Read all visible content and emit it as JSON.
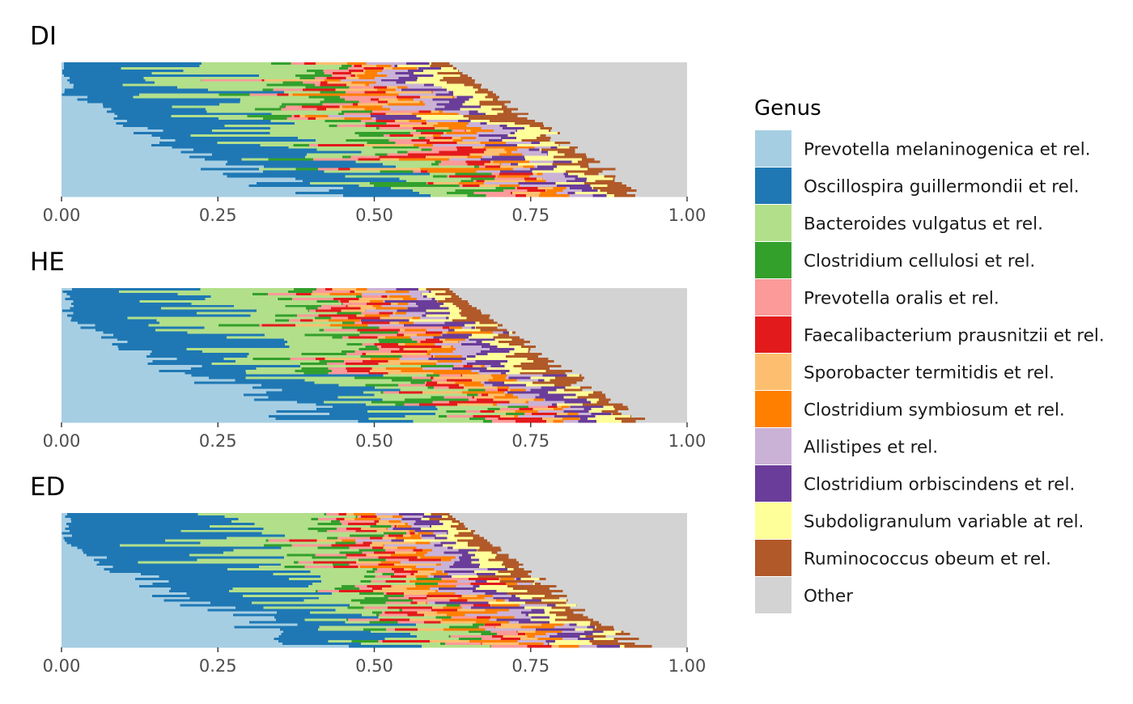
{
  "chart_data": [
    {
      "type": "bar",
      "orientation": "horizontal",
      "stacking": "stacked",
      "title": "DI",
      "xlim": [
        0,
        1
      ],
      "x_ticks": [
        "0.00",
        "0.25",
        "0.50",
        "0.75",
        "1.00"
      ],
      "n_samples": 56,
      "sorted_by": "Prevotella melaninogenica et rel. (descending toward bottom)",
      "approximate_genus_values": {
        "Prevotella melaninogenica et rel.": [
          0.0,
          0.45
        ],
        "Oscillospira guillermondii et rel.": [
          0.05,
          0.35
        ],
        "Bacteroides vulgatus et rel.": [
          0.02,
          0.3
        ],
        "Other": [
          0.06,
          0.35
        ]
      },
      "max_total_shown": 0.94
    },
    {
      "type": "bar",
      "orientation": "horizontal",
      "stacking": "stacked",
      "title": "HE",
      "xlim": [
        0,
        1
      ],
      "x_ticks": [
        "0.00",
        "0.25",
        "0.50",
        "0.75",
        "1.00"
      ],
      "n_samples": 56,
      "sorted_by": "Prevotella melaninogenica et rel. (descending toward bottom)",
      "approximate_genus_values": {
        "Prevotella melaninogenica et rel.": [
          0.0,
          0.48
        ],
        "Oscillospira guillermondii et rel.": [
          0.05,
          0.3
        ],
        "Bacteroides vulgatus et rel.": [
          0.02,
          0.25
        ],
        "Other": [
          0.07,
          0.35
        ]
      },
      "max_total_shown": 0.93
    },
    {
      "type": "bar",
      "orientation": "horizontal",
      "stacking": "stacked",
      "title": "ED",
      "xlim": [
        0,
        1
      ],
      "x_ticks": [
        "0.00",
        "0.25",
        "0.50",
        "0.75",
        "1.00"
      ],
      "n_samples": 56,
      "sorted_by": "Prevotella melaninogenica et rel. (descending toward bottom)",
      "approximate_genus_values": {
        "Prevotella melaninogenica et rel.": [
          0.0,
          0.47
        ],
        "Oscillospira guillermondii et rel.": [
          0.05,
          0.33
        ],
        "Bacteroides vulgatus et rel.": [
          0.02,
          0.28
        ],
        "Other": [
          0.07,
          0.35
        ]
      },
      "max_total_shown": 0.93
    }
  ],
  "legend": {
    "title": "Genus",
    "placement": "right",
    "entries": [
      {
        "label": "Prevotella melaninogenica et rel.",
        "color": "#a6cee3"
      },
      {
        "label": "Oscillospira guillermondii et rel.",
        "color": "#1f78b4"
      },
      {
        "label": "Bacteroides vulgatus et rel.",
        "color": "#b2df8a"
      },
      {
        "label": "Clostridium cellulosi et rel.",
        "color": "#33a02c"
      },
      {
        "label": "Prevotella oralis et rel.",
        "color": "#fb9a99"
      },
      {
        "label": "Faecalibacterium prausnitzii et rel.",
        "color": "#e31a1c"
      },
      {
        "label": "Sporobacter termitidis et rel.",
        "color": "#fdbf6f"
      },
      {
        "label": "Clostridium symbiosum et rel.",
        "color": "#ff7f00"
      },
      {
        "label": "Allistipes et rel.",
        "color": "#cab2d6"
      },
      {
        "label": "Clostridium orbiscindens et rel.",
        "color": "#6a3d9a"
      },
      {
        "label": "Subdoligranulum variable at rel.",
        "color": "#ffff99"
      },
      {
        "label": "Ruminococcus obeum et rel.",
        "color": "#b15928"
      },
      {
        "label": "Other",
        "color": "#d3d3d3"
      }
    ]
  },
  "other_color": "#d3d3d3",
  "axis_text_color": "#4d4d4d"
}
